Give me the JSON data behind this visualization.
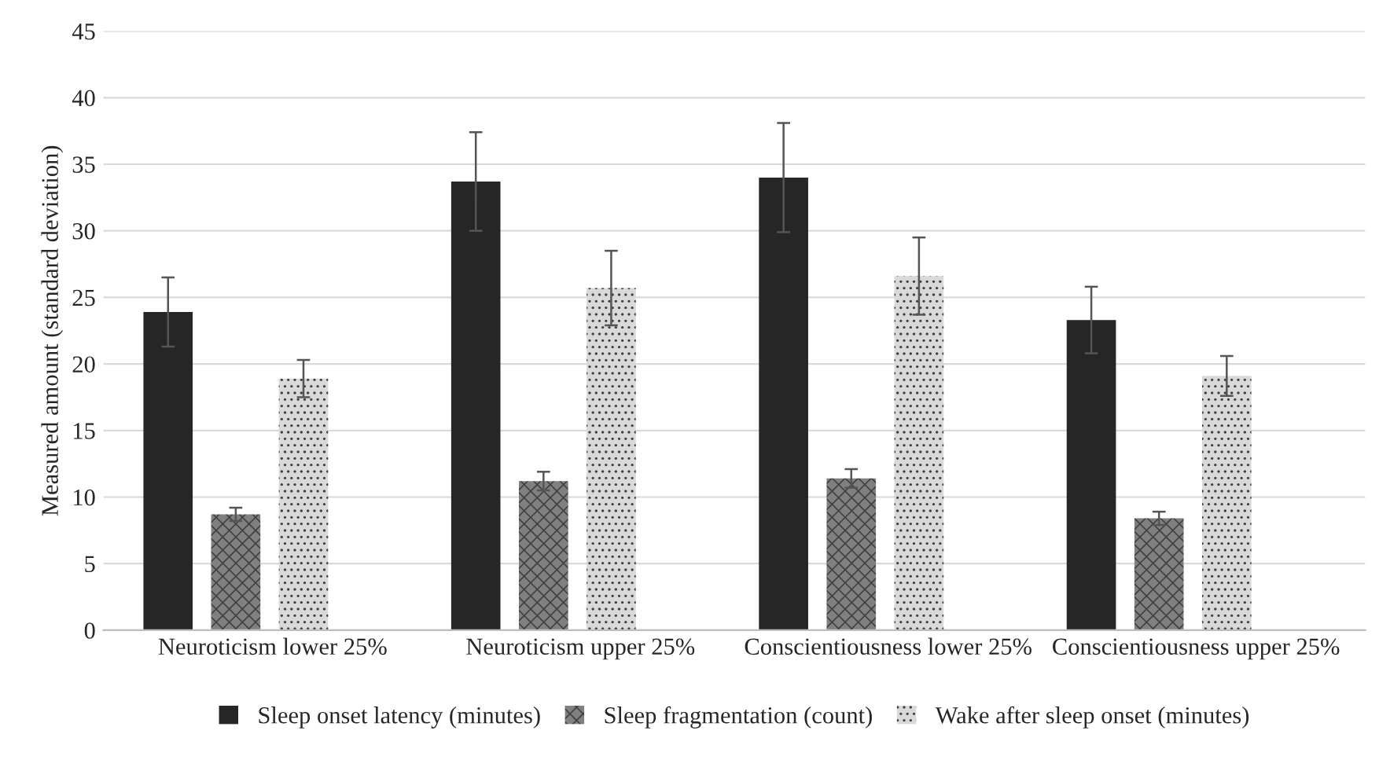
{
  "chart_data": {
    "type": "bar",
    "ylabel": "Measured amount (standard deviation)",
    "categories": [
      "Neuroticism lower 25%",
      "Neuroticism upper 25%",
      "Conscientiousness lower 25%",
      "Conscientiousness upper 25%"
    ],
    "series": [
      {
        "name": "Sleep onset latency (minutes)",
        "color": "#262626",
        "values": [
          23.9,
          33.7,
          34.0,
          23.3
        ],
        "errors": [
          2.6,
          3.7,
          4.1,
          2.5
        ]
      },
      {
        "name": "Sleep fragmentation (count)",
        "color": "#808080",
        "values": [
          8.7,
          11.2,
          11.4,
          8.4
        ],
        "errors": [
          0.5,
          0.7,
          0.7,
          0.5
        ]
      },
      {
        "name": "Wake after sleep onset (minutes)",
        "color": "#d9d9d9",
        "values": [
          18.9,
          25.7,
          26.6,
          19.1
        ],
        "errors": [
          1.4,
          2.8,
          2.9,
          1.5
        ]
      }
    ],
    "ylim": [
      0,
      45
    ],
    "yticks": [
      0,
      5,
      10,
      15,
      20,
      25,
      30,
      35,
      40,
      45
    ],
    "grid": "y",
    "legend": "bottom"
  }
}
